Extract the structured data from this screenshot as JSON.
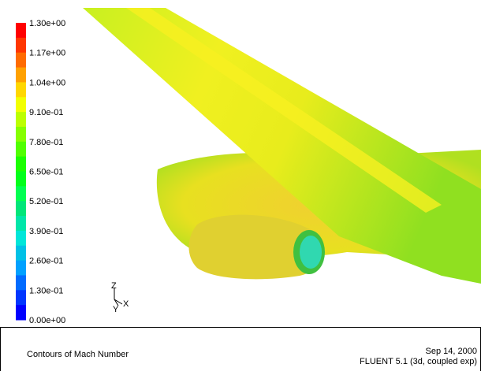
{
  "legend": {
    "labels": [
      "1.30e+00",
      "1.17e+00",
      "1.04e+00",
      "9.10e-01",
      "7.80e-01",
      "6.50e-01",
      "5.20e-01",
      "3.90e-01",
      "2.60e-01",
      "1.30e-01",
      "0.00e+00"
    ]
  },
  "axes": {
    "z": "Z",
    "y": "Y",
    "x": "X"
  },
  "footer": {
    "title": "Contours of Mach Number",
    "date": "Sep 14, 2000",
    "software": "FLUENT 5.1 (3d, coupled exp)"
  }
}
